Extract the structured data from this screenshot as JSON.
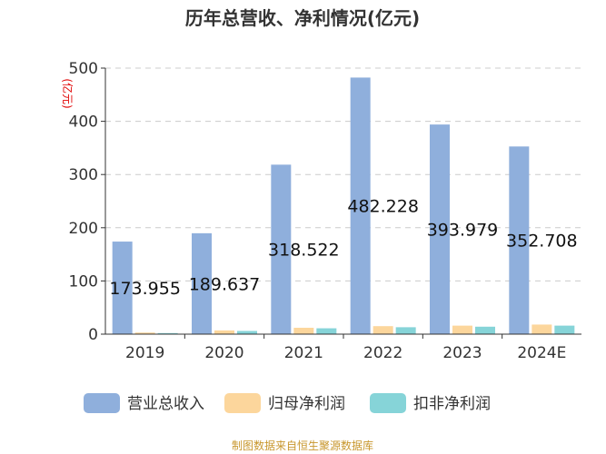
{
  "chart_data": {
    "type": "bar",
    "title": "历年总营收、净利情况(亿元)",
    "unit_label": "(亿元)",
    "categories": [
      "2019",
      "2020",
      "2021",
      "2022",
      "2023",
      "2024E"
    ],
    "series": [
      {
        "name": "营业总收入",
        "color": "#8fafdc",
        "values": [
          173.955,
          189.637,
          318.522,
          482.228,
          393.979,
          352.708
        ]
      },
      {
        "name": "归母净利润",
        "color": "#fcd69c",
        "values": [
          3,
          7,
          12,
          15,
          16,
          18
        ]
      },
      {
        "name": "扣非净利润",
        "color": "#86d4d8",
        "values": [
          2,
          6,
          11,
          13,
          14,
          16
        ]
      }
    ],
    "data_labels": [
      "173.955",
      "189.637",
      "318.522",
      "482.228",
      "393.979",
      "352.708"
    ],
    "ylim": [
      0,
      500
    ],
    "yticks": [
      0,
      100,
      200,
      300,
      400,
      500
    ],
    "grid": true,
    "legend_position": "bottom"
  },
  "source_note": "制图数据来自恒生聚源数据库"
}
